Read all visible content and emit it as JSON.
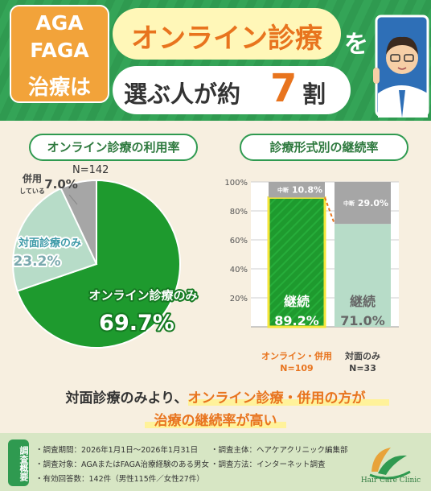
{
  "header": {
    "tag_line1": "AGA",
    "tag_line2": "FAGA",
    "tag_line3": "治療は",
    "bubble1": "オンライン診療",
    "wo": "を",
    "bubble2_a": "選ぶ人が約",
    "bubble2_num": "7",
    "bubble2_c": "割"
  },
  "left": {
    "title": "オンライン診療の利用率",
    "n_label": "N=142"
  },
  "right": {
    "title": "診療形式別の継続率"
  },
  "chart_data": [
    {
      "type": "pie",
      "title": "オンライン診療の利用率",
      "n": "N=142",
      "slices": [
        {
          "name": "オンライン診療のみ",
          "value": 69.7,
          "label": "69.7%",
          "color": "#1e9a2e"
        },
        {
          "name": "対面診療のみ",
          "value": 23.2,
          "label": "23.2%",
          "color": "#b7dcc8"
        },
        {
          "name": "併用している",
          "name_a": "併用",
          "name_b": "している",
          "value": 7.0,
          "label": "7.0%",
          "color": "#a6a6a6"
        }
      ]
    },
    {
      "type": "bar",
      "title": "診療形式別の継続率",
      "stacked": true,
      "ylim": [
        0,
        100
      ],
      "yticks": [
        "20%",
        "40%",
        "60%",
        "80%",
        "100%"
      ],
      "categories": [
        {
          "name": "オンライン・併用",
          "n": "N=109"
        },
        {
          "name": "対面のみ",
          "n": "N=33"
        }
      ],
      "series": [
        {
          "name": "継続",
          "values": [
            89.2,
            71.0
          ],
          "labels": [
            "89.2%",
            "71.0%"
          ],
          "colors": [
            "#1e9a2e",
            "#b7dcc8"
          ]
        },
        {
          "name": "中断",
          "values": [
            10.8,
            29.0
          ],
          "labels": [
            "10.8%",
            "29.0%"
          ],
          "colors": [
            "#a6a6a6",
            "#a6a6a6"
          ]
        }
      ]
    }
  ],
  "conclusion": {
    "line1_a": "対面診療のみより、",
    "line1_b": "オンライン診療・併用の方が",
    "line2": "治療の継続率が高い"
  },
  "footer": {
    "tag": "調査概要",
    "items": [
      "・調査期間：2026年1月1日〜2026年1月31日",
      "・調査対象：AGAまたはFAGA治療経験のある男女",
      "・有効回答数：142件（男性115件／女性27件）",
      "・調査主体：ヘアケアクリニック編集部",
      "・調査方法：インターネット調査"
    ],
    "logo_text": "Hair Care Clinic"
  }
}
